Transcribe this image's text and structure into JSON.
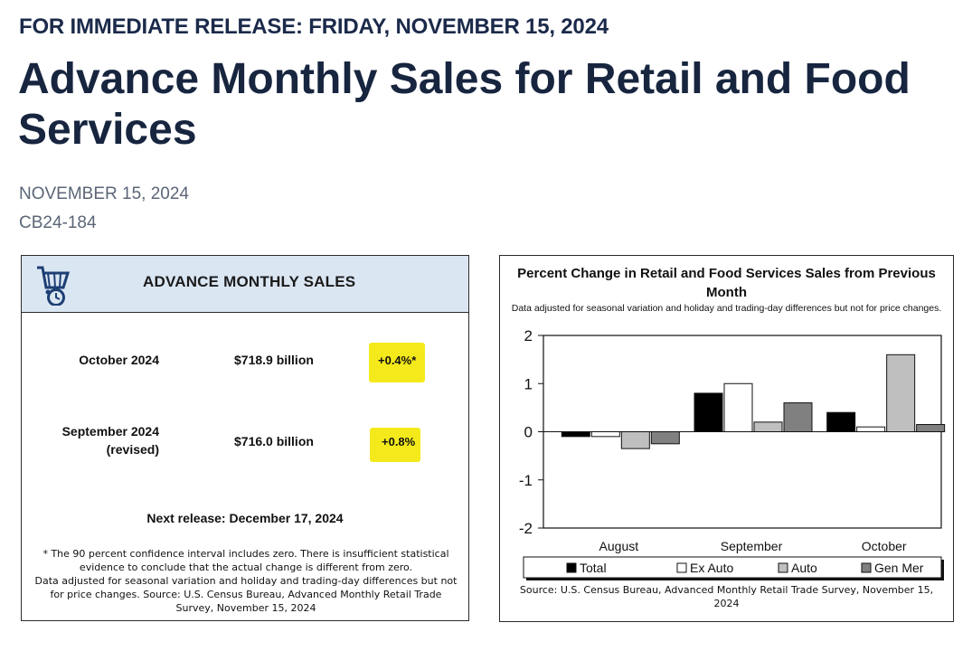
{
  "header": {
    "release_line": "FOR IMMEDIATE RELEASE: FRIDAY, NOVEMBER 15, 2024",
    "title": "Advance Monthly Sales for Retail and Food Services",
    "date": "NOVEMBER 15, 2024",
    "release_id": "CB24-184"
  },
  "summary_card": {
    "title": "ADVANCE MONTHLY SALES",
    "icon": "shopping-cart-clock-icon",
    "rows": [
      {
        "label": "October 2024",
        "value": "$718.9 billion",
        "change": "+0.4%*"
      },
      {
        "label_line1": "September 2024",
        "label_line2": "(revised)",
        "value": "$716.0 billion",
        "change": "+0.8%"
      }
    ],
    "highlight_color": "#f4ea1b",
    "next_release": "Next release: December 17, 2024",
    "footnote_1": "* The 90 percent confidence interval includes zero. There is insufficient statistical evidence to conclude that the actual change is different from zero.",
    "footnote_2": "Data adjusted for seasonal variation and holiday and trading-day differences but not for price changes. Source: U.S. Census Bureau, Advanced Monthly Retail Trade Survey, November 15, 2024"
  },
  "chart_data": {
    "type": "bar",
    "title": "Percent Change in Retail and Food Services Sales from Previous Month",
    "subtitle": "Data adjusted for seasonal variation and holiday and trading-day differences but not for price changes.",
    "categories": [
      "August",
      "September",
      "October"
    ],
    "ylim": [
      -2,
      2
    ],
    "yticks": [
      "2",
      "1",
      "0",
      "-1",
      "-2"
    ],
    "grid": false,
    "legend_position": "bottom",
    "series": [
      {
        "name": "Total",
        "values": [
          -0.1,
          0.8,
          0.4
        ],
        "color": "#000000"
      },
      {
        "name": "Ex Auto",
        "values": [
          -0.1,
          1.0,
          0.1
        ],
        "color": "#ffffff"
      },
      {
        "name": "Auto",
        "values": [
          -0.35,
          0.2,
          1.6
        ],
        "color": "#bfbfbf"
      },
      {
        "name": "Gen Mer",
        "values": [
          -0.25,
          0.6,
          0.15
        ],
        "color": "#808080"
      }
    ],
    "source": "Source: U.S. Census Bureau, Advanced Monthly Retail Trade Survey, November 15, 2024"
  }
}
